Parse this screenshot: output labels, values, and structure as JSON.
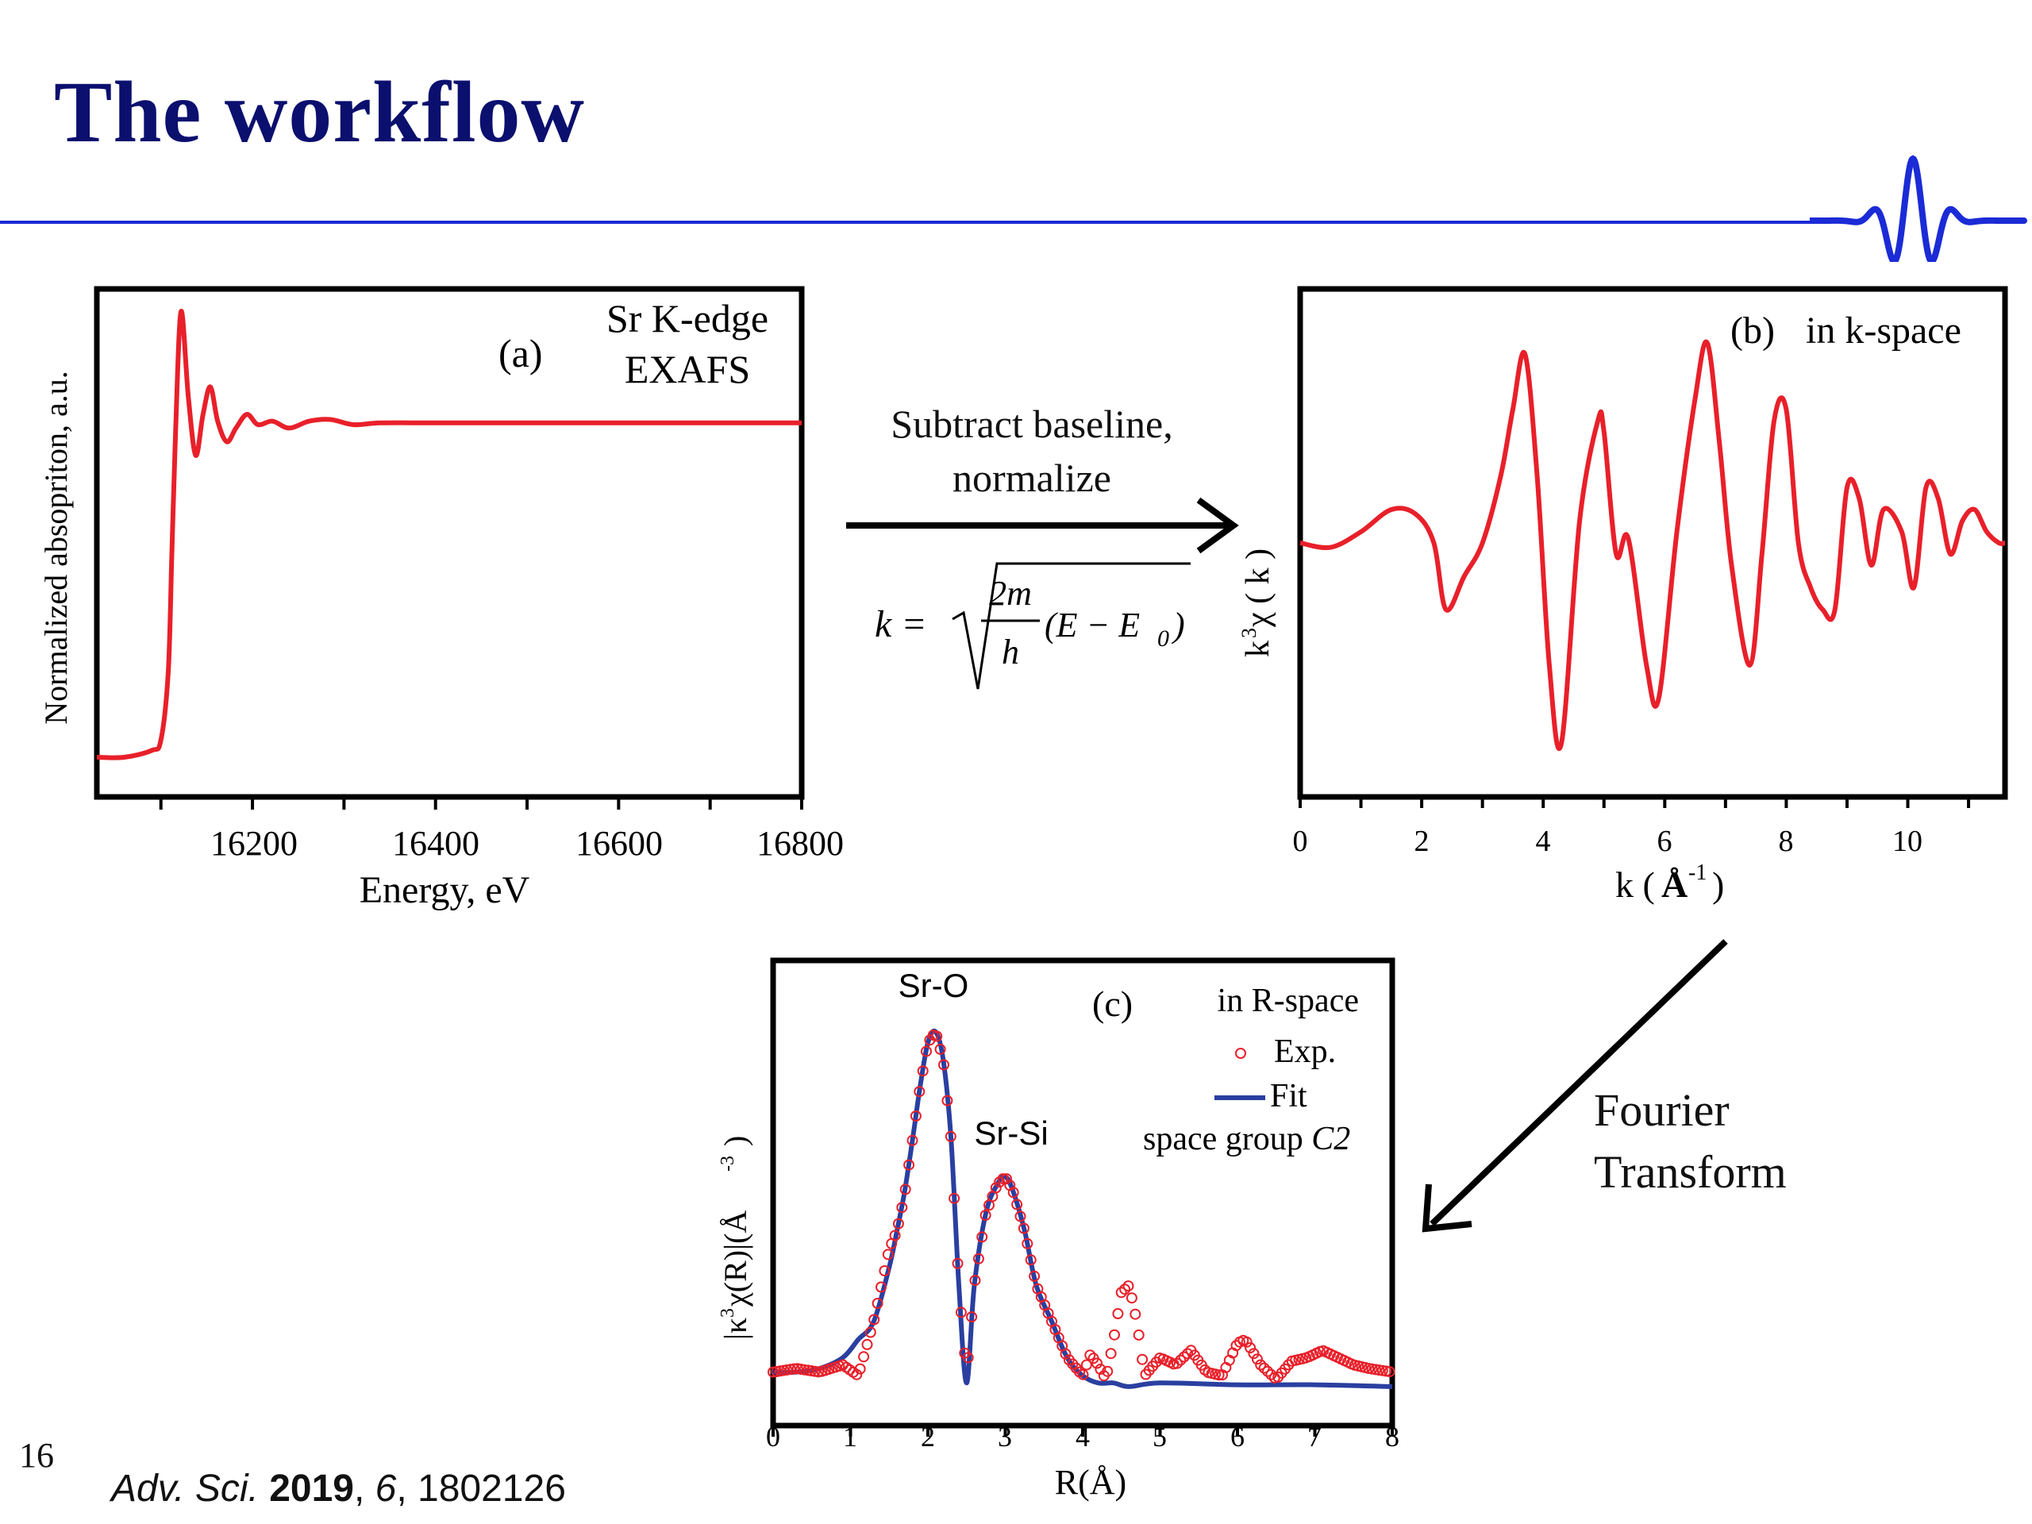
{
  "slide": {
    "title": "The workflow",
    "page_number": "16",
    "citation": {
      "journal": "Adv. Sci.",
      "year": "2019",
      "sep1": ", ",
      "volume": "6",
      "rest": ", 1802126"
    },
    "colors": {
      "title": "#0b0f6e",
      "rule": "#1b2bd6",
      "curve": "#e8202a",
      "fit": "#2a3fa0",
      "logo": "#1b2bd6"
    }
  },
  "step1": {
    "line1": "Subtract baseline,",
    "line2": "normalize",
    "formula": {
      "lhs": "k =",
      "numerator": "2m",
      "denominator": "h",
      "term": "(E − E",
      "sub": "0",
      "close": ")"
    }
  },
  "step2": {
    "line1": "Fourier",
    "line2": "Transform"
  },
  "charts": {
    "a": {
      "label": "(a)",
      "legend1": "Sr K-edge",
      "legend2": "EXAFS",
      "xlabel": "Energy, eV",
      "ylabel": "Normalized absopriton, a.u.",
      "xticks": [
        "16200",
        "16400",
        "16600",
        "16800"
      ]
    },
    "b": {
      "label": "(b)",
      "legend": "in k-space",
      "xlabel_main": "k (",
      "xlabel_unit": "Å",
      "xlabel_sup": "-1",
      "xlabel_close": ")",
      "ylabel_k": "k",
      "ylabel_sup": "3",
      "ylabel_rest": "χ ( k )",
      "xticks": [
        "0",
        "2",
        "4",
        "6",
        "8",
        "10"
      ]
    },
    "c": {
      "label": "(c)",
      "legend_title": "in R-space",
      "legend_exp": "Exp.",
      "legend_fit": "Fit",
      "space_group": "space group ",
      "space_group_italic": "C2",
      "peak1": "Sr-O",
      "peak2": "Sr-Si",
      "xlabel": "R(Å)",
      "ylabel_pre": "|κ",
      "ylabel_sup": "3",
      "ylabel_mid": "χ(R)|(Å",
      "ylabel_sup2": "-3",
      "ylabel_close": ")",
      "xticks": [
        "0",
        "1",
        "2",
        "3",
        "4",
        "5",
        "6",
        "7",
        "8"
      ]
    }
  },
  "chart_data": [
    {
      "type": "line",
      "title": "",
      "xlabel": "Energy, eV",
      "ylabel": "Normalized absopriton, a.u.",
      "xlim": [
        16030,
        16800
      ],
      "ylim": [
        0,
        1.25
      ],
      "series": [
        {
          "name": "Sr K-edge EXAFS",
          "x": [
            16030,
            16060,
            16090,
            16100,
            16108,
            16112,
            16116,
            16122,
            16130,
            16138,
            16146,
            16154,
            16162,
            16172,
            16182,
            16194,
            16206,
            16222,
            16240,
            16262,
            16285,
            16310,
            16340,
            16400,
            16500,
            16600,
            16700,
            16800
          ],
          "y": [
            0.0,
            0.0,
            0.02,
            0.05,
            0.25,
            0.6,
            0.95,
            1.3,
            1.05,
            0.88,
            1.0,
            1.08,
            0.98,
            0.92,
            0.96,
            1.0,
            0.97,
            0.98,
            0.96,
            0.98,
            0.985,
            0.97,
            0.975,
            0.975,
            0.975,
            0.975,
            0.975,
            0.975
          ]
        }
      ]
    },
    {
      "type": "line",
      "title": "",
      "xlabel": "k (Å-1)",
      "ylabel": "k3χ(k)",
      "xlim": [
        0,
        11.6
      ],
      "ylim": [
        -1.0,
        1.0
      ],
      "series": [
        {
          "name": "in k-space",
          "x": [
            0,
            0.5,
            1.0,
            1.5,
            1.9,
            2.2,
            2.4,
            2.7,
            3.0,
            3.3,
            3.5,
            3.7,
            3.9,
            4.1,
            4.3,
            4.6,
            4.9,
            5.0,
            5.2,
            5.4,
            5.7,
            5.9,
            6.2,
            6.5,
            6.7,
            6.9,
            7.1,
            7.4,
            7.6,
            7.8,
            8.0,
            8.2,
            8.4,
            8.6,
            8.8,
            9.0,
            9.2,
            9.4,
            9.6,
            9.9,
            10.1,
            10.3,
            10.5,
            10.7,
            10.9,
            11.1,
            11.3,
            11.5,
            11.6
          ],
          "y": [
            0.0,
            -0.02,
            0.05,
            0.15,
            0.13,
            0.0,
            -0.3,
            -0.15,
            0.0,
            0.3,
            0.6,
            0.85,
            0.3,
            -0.55,
            -0.9,
            0.1,
            0.55,
            0.5,
            -0.05,
            0.02,
            -0.55,
            -0.7,
            0.05,
            0.65,
            0.9,
            0.45,
            -0.1,
            -0.55,
            -0.05,
            0.55,
            0.6,
            0.0,
            -0.2,
            -0.3,
            -0.3,
            0.25,
            0.2,
            -0.1,
            0.15,
            0.05,
            -0.2,
            0.25,
            0.2,
            -0.05,
            0.1,
            0.15,
            0.05,
            0.0,
            0.0
          ]
        }
      ]
    },
    {
      "type": "line",
      "title": "",
      "xlabel": "R(Å)",
      "ylabel": "|κ3χ(R)|(Å-3)",
      "xlim": [
        0,
        8
      ],
      "ylim": [
        0,
        1.0
      ],
      "series": [
        {
          "name": "Exp.",
          "x": [
            0,
            0.3,
            0.6,
            0.9,
            1.1,
            1.3,
            1.5,
            1.6,
            1.7,
            1.8,
            1.9,
            2.0,
            2.1,
            2.2,
            2.3,
            2.4,
            2.5,
            2.6,
            2.75,
            2.9,
            3.0,
            3.1,
            3.25,
            3.4,
            3.6,
            3.8,
            4.0,
            4.1,
            4.2,
            4.3,
            4.4,
            4.5,
            4.6,
            4.7,
            4.8,
            5.0,
            5.2,
            5.4,
            5.6,
            5.8,
            6.0,
            6.1,
            6.3,
            6.5,
            6.7,
            6.9,
            7.1,
            7.3,
            7.5,
            7.7,
            8.0
          ],
          "y": [
            0.06,
            0.07,
            0.06,
            0.08,
            0.05,
            0.2,
            0.4,
            0.45,
            0.55,
            0.7,
            0.85,
            0.97,
            1.0,
            0.92,
            0.7,
            0.3,
            0.05,
            0.3,
            0.5,
            0.58,
            0.6,
            0.56,
            0.45,
            0.3,
            0.2,
            0.1,
            0.05,
            0.11,
            0.08,
            0.04,
            0.15,
            0.28,
            0.3,
            0.2,
            0.05,
            0.1,
            0.08,
            0.12,
            0.06,
            0.05,
            0.14,
            0.15,
            0.08,
            0.04,
            0.09,
            0.1,
            0.12,
            0.1,
            0.08,
            0.07,
            0.06
          ]
        },
        {
          "name": "Fit",
          "x": [
            0,
            0.3,
            0.6,
            0.9,
            1.1,
            1.3,
            1.5,
            1.6,
            1.7,
            1.8,
            1.9,
            2.0,
            2.1,
            2.2,
            2.3,
            2.4,
            2.5,
            2.6,
            2.75,
            2.9,
            3.0,
            3.1,
            3.25,
            3.4,
            3.6,
            3.8,
            4.0,
            4.2,
            4.4,
            4.6,
            5.0,
            6.0,
            7.0,
            8.0
          ],
          "y": [
            0.06,
            0.06,
            0.07,
            0.1,
            0.15,
            0.2,
            0.35,
            0.45,
            0.56,
            0.7,
            0.85,
            0.97,
            1.0,
            0.92,
            0.7,
            0.3,
            0.03,
            0.3,
            0.5,
            0.58,
            0.6,
            0.56,
            0.45,
            0.3,
            0.2,
            0.1,
            0.05,
            0.03,
            0.03,
            0.02,
            0.03,
            0.025,
            0.025,
            0.02
          ]
        }
      ]
    }
  ]
}
